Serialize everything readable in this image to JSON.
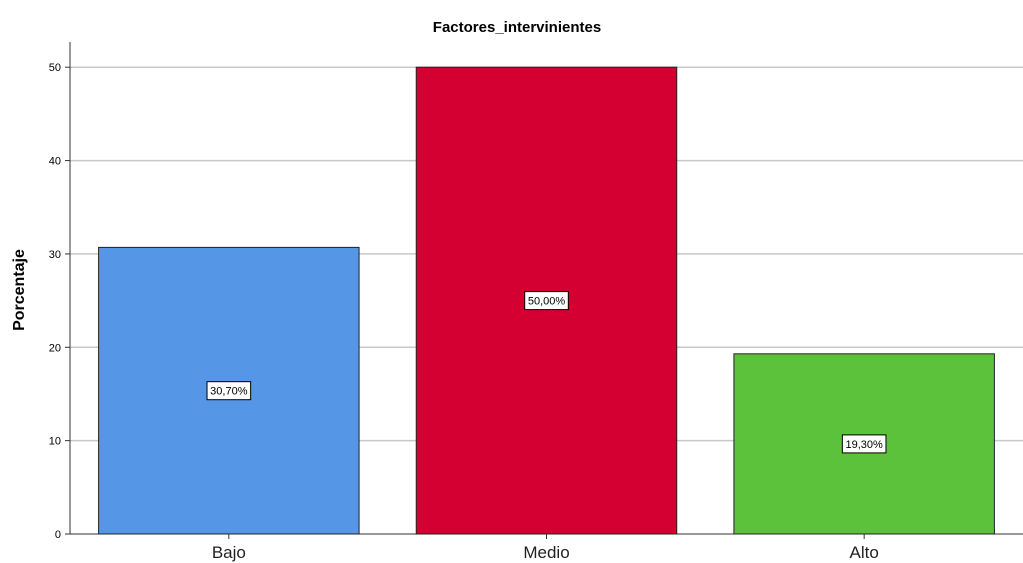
{
  "chart_data": {
    "type": "bar",
    "title": "Factores_intervinientes",
    "xlabel": "",
    "ylabel": "Porcentaje",
    "categories": [
      "Bajo",
      "Medio",
      "Alto"
    ],
    "values": [
      30.7,
      50.0,
      19.3
    ],
    "data_labels": [
      "30,70%",
      "50,00%",
      "19,30%"
    ],
    "colors": [
      "#5596e6",
      "#d40032",
      "#5cc13b"
    ],
    "ylim": [
      0,
      52.7
    ],
    "yticks": [
      0,
      10,
      20,
      30,
      40,
      50
    ],
    "grid": true,
    "legend": "none"
  },
  "colors": {
    "grid": "#c8c8c8",
    "axis": "#333333",
    "bar_border": "#222222",
    "text": "#000000"
  }
}
